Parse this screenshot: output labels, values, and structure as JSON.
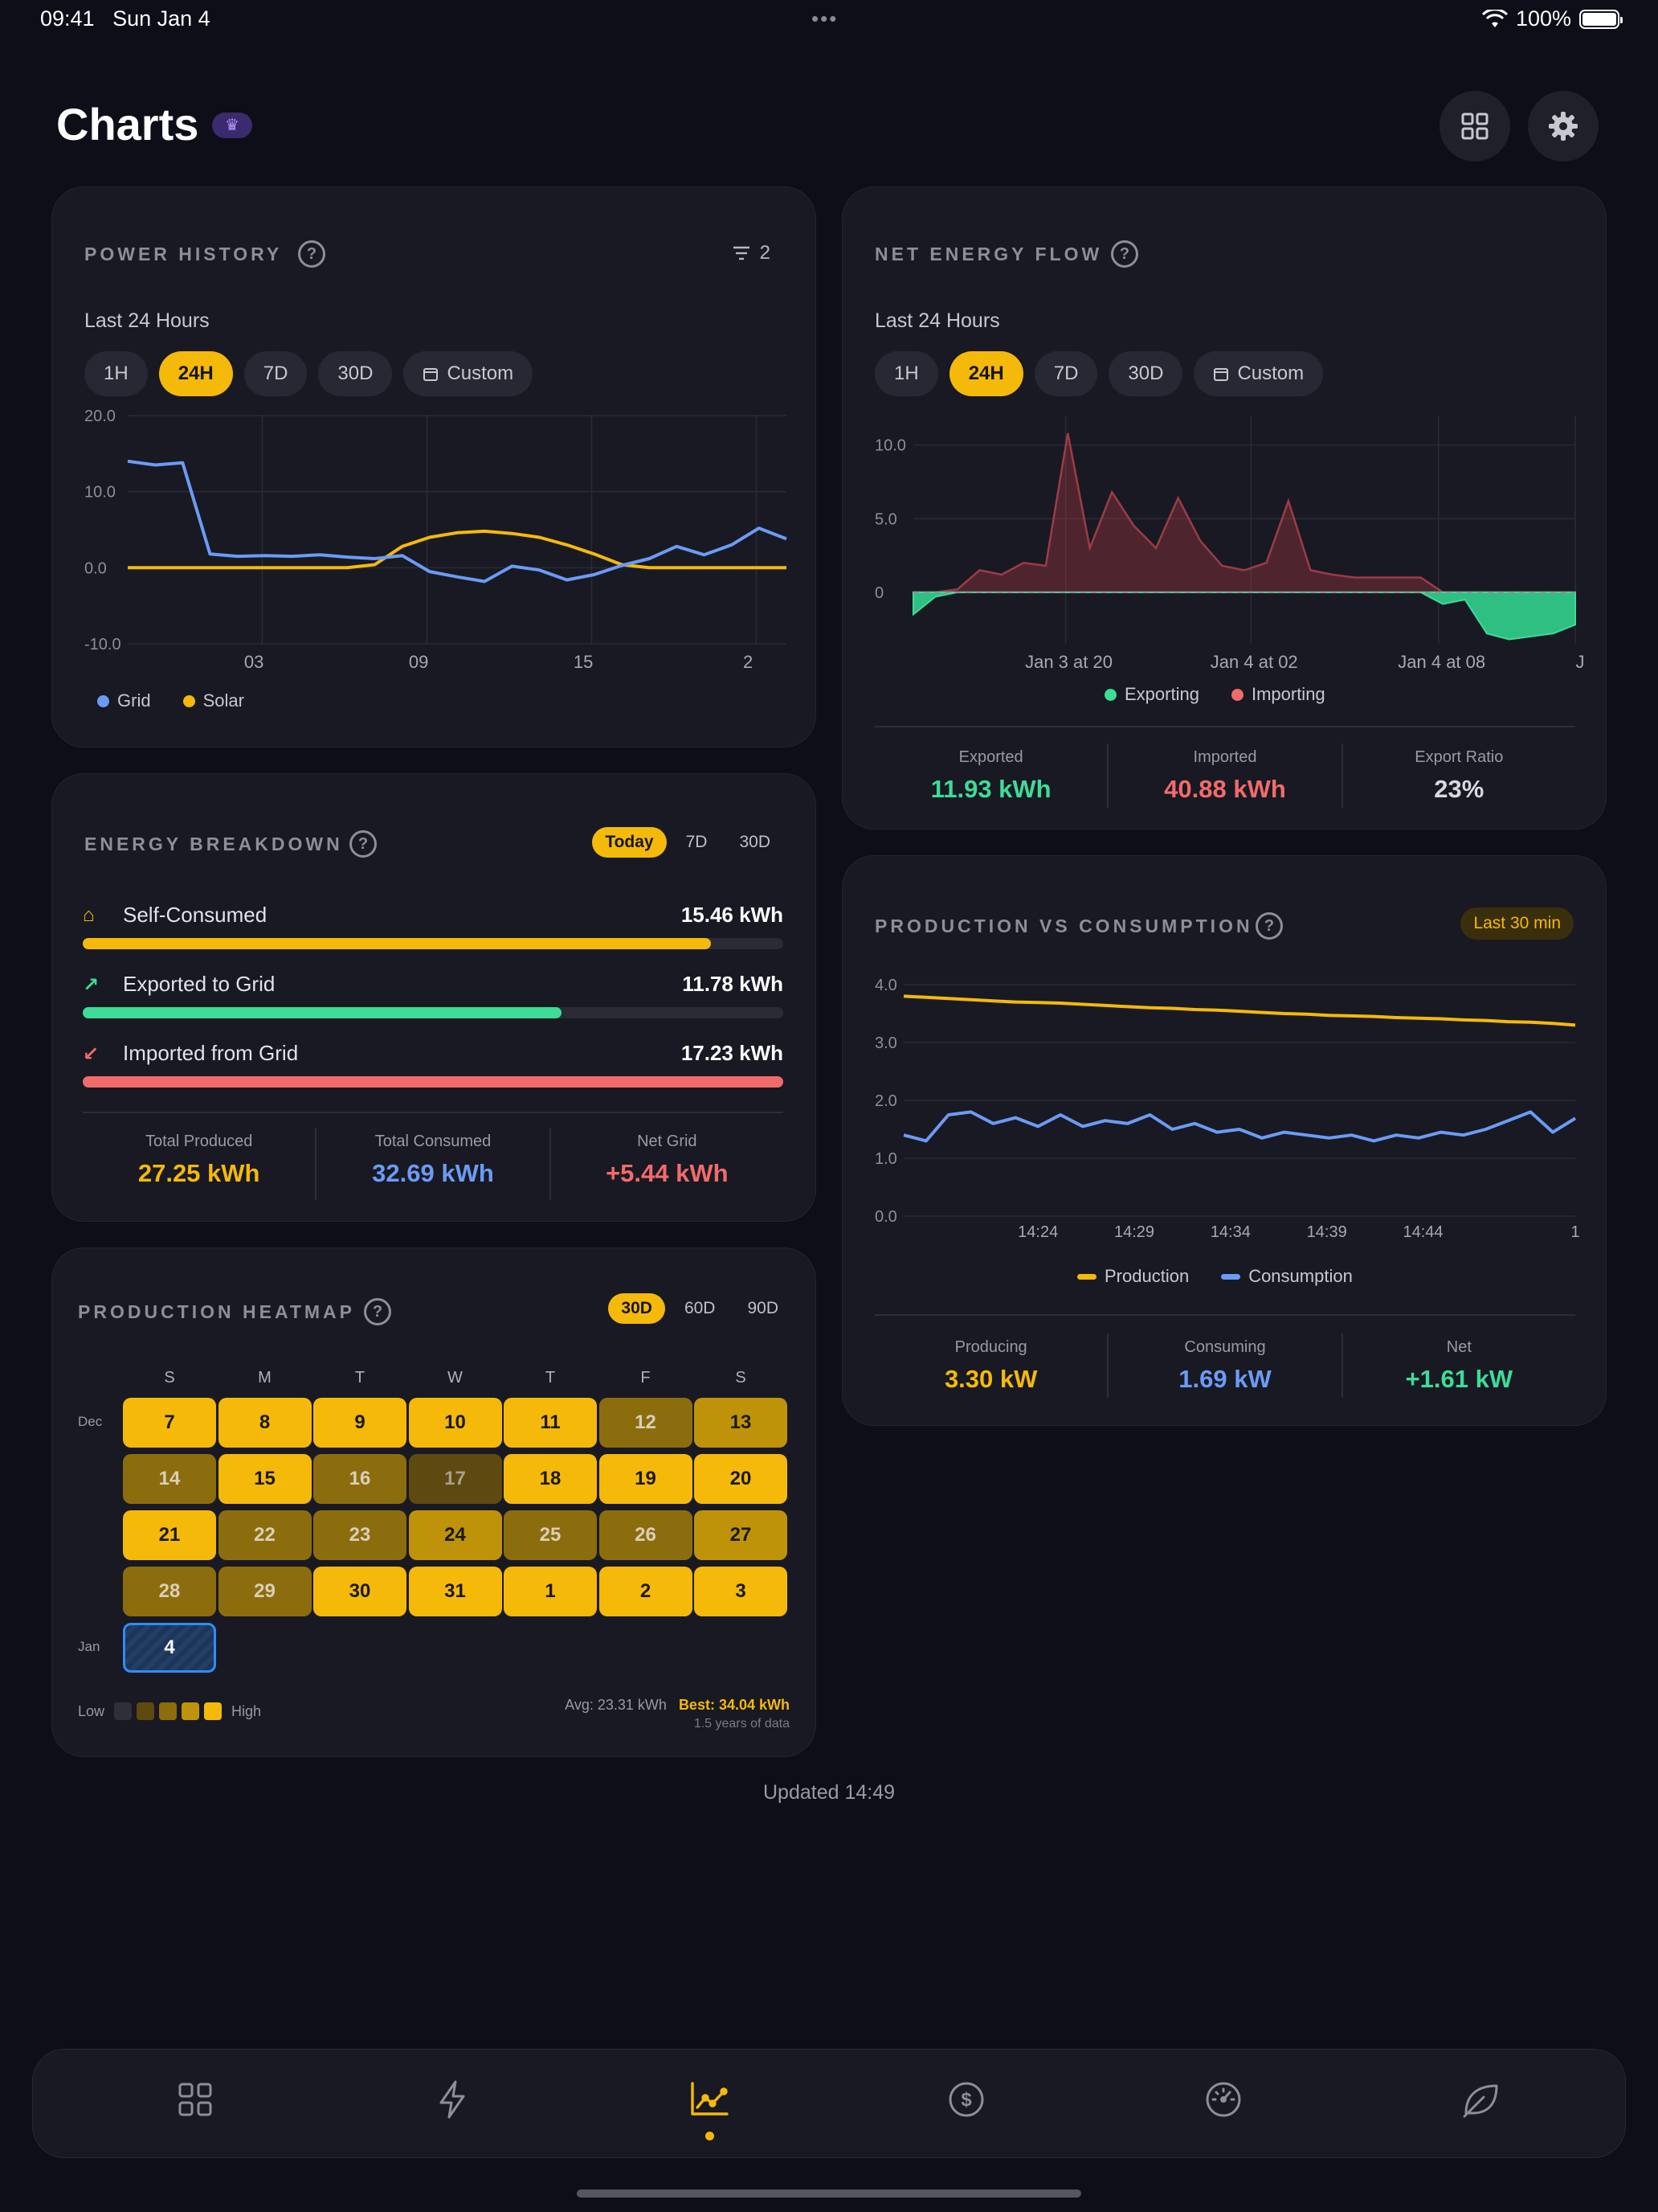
{
  "status": {
    "time": "09:41",
    "date": "Sun Jan 4",
    "battery": "100%"
  },
  "header": {
    "title": "Charts",
    "grid_icon": "grid-icon",
    "settings_icon": "gear-icon",
    "badge_icon": "crown-icon"
  },
  "power_history": {
    "title": "POWER HISTORY",
    "filter_count": "2",
    "subtitle": "Last 24 Hours",
    "ranges": [
      "1H",
      "24H",
      "7D",
      "30D",
      "Custom"
    ],
    "active_range": "24H",
    "legend": [
      "Grid",
      "Solar"
    ],
    "colors": {
      "grid": "#6b9bf5",
      "solar": "#f5b90a"
    }
  },
  "net_energy": {
    "title": "NET ENERGY FLOW",
    "subtitle": "Last 24 Hours",
    "ranges": [
      "1H",
      "24H",
      "7D",
      "30D",
      "Custom"
    ],
    "active_range": "24H",
    "legend": [
      "Exporting",
      "Importing"
    ],
    "stats": [
      {
        "label": "Exported",
        "value": "11.93 kWh",
        "color": "#3ddc97"
      },
      {
        "label": "Imported",
        "value": "40.88 kWh",
        "color": "#f26b6b"
      },
      {
        "label": "Export Ratio",
        "value": "23%",
        "color": "#d8d8de"
      }
    ]
  },
  "energy_breakdown": {
    "title": "ENERGY BREAKDOWN",
    "ranges": [
      "Today",
      "7D",
      "30D"
    ],
    "active_range": "Today",
    "rows": [
      {
        "label": "Self-Consumed",
        "value": "15.46 kWh",
        "fraction": 0.897,
        "color": "#f5b90a",
        "icon": "home-icon"
      },
      {
        "label": "Exported to Grid",
        "value": "11.78 kWh",
        "fraction": 0.683,
        "color": "#3ddc97",
        "icon": "arrow-up-right-icon"
      },
      {
        "label": "Imported from Grid",
        "value": "17.23 kWh",
        "fraction": 1.0,
        "color": "#f26b6b",
        "icon": "arrow-down-left-icon"
      }
    ],
    "stats": [
      {
        "label": "Total Produced",
        "value": "27.25 kWh",
        "color": "#f5b90a"
      },
      {
        "label": "Total Consumed",
        "value": "32.69 kWh",
        "color": "#6b9bf5"
      },
      {
        "label": "Net Grid",
        "value": "+5.44 kWh",
        "color": "#f26b6b"
      }
    ]
  },
  "production_vs_consumption": {
    "title": "PRODUCTION VS CONSUMPTION",
    "badge": "Last 30 min",
    "legend": [
      "Production",
      "Consumption"
    ],
    "stats": [
      {
        "label": "Producing",
        "value": "3.30 kW",
        "color": "#f5b90a"
      },
      {
        "label": "Consuming",
        "value": "1.69 kW",
        "color": "#6b9bf5"
      },
      {
        "label": "Net",
        "value": "+1.61 kW",
        "color": "#3ddc97"
      }
    ]
  },
  "heatmap": {
    "title": "PRODUCTION HEATMAP",
    "ranges": [
      "30D",
      "60D",
      "90D"
    ],
    "active_range": "30D",
    "weekdays": [
      "S",
      "M",
      "T",
      "W",
      "T",
      "F",
      "S"
    ],
    "month_labels": [
      "Dec",
      "Jan"
    ],
    "weeks": [
      [
        {
          "d": "7",
          "l": 4
        },
        {
          "d": "8",
          "l": 4
        },
        {
          "d": "9",
          "l": 4
        },
        {
          "d": "10",
          "l": 4
        },
        {
          "d": "11",
          "l": 4
        },
        {
          "d": "12",
          "l": 2
        },
        {
          "d": "13",
          "l": 3
        }
      ],
      [
        {
          "d": "14",
          "l": 2
        },
        {
          "d": "15",
          "l": 4
        },
        {
          "d": "16",
          "l": 2
        },
        {
          "d": "17",
          "l": 1
        },
        {
          "d": "18",
          "l": 4
        },
        {
          "d": "19",
          "l": 4
        },
        {
          "d": "20",
          "l": 4
        }
      ],
      [
        {
          "d": "21",
          "l": 4
        },
        {
          "d": "22",
          "l": 2
        },
        {
          "d": "23",
          "l": 2
        },
        {
          "d": "24",
          "l": 3
        },
        {
          "d": "25",
          "l": 2
        },
        {
          "d": "26",
          "l": 2
        },
        {
          "d": "27",
          "l": 3
        }
      ],
      [
        {
          "d": "28",
          "l": 2
        },
        {
          "d": "29",
          "l": 2
        },
        {
          "d": "30",
          "l": 4
        },
        {
          "d": "31",
          "l": 4
        },
        {
          "d": "1",
          "l": 4
        },
        {
          "d": "2",
          "l": 4
        },
        {
          "d": "3",
          "l": 4
        }
      ],
      [
        {
          "d": "4",
          "l": 0,
          "today": true
        }
      ]
    ],
    "legend_low": "Low",
    "legend_high": "High",
    "avg": "Avg: 23.31 kWh",
    "best": "Best: 34.04 kWh",
    "history": "1.5 years of data"
  },
  "footer": {
    "updated": "Updated 14:49"
  },
  "tabbar": {
    "tabs": [
      "grid-icon",
      "bolt-icon",
      "chart-icon",
      "dollar-icon",
      "gauge-icon",
      "leaf-icon"
    ],
    "active": 2
  },
  "chart_data": [
    {
      "type": "line",
      "x_ticks": [
        "03",
        "09",
        "15",
        "2"
      ],
      "ylim": [
        -10,
        20
      ],
      "y_ticks": [
        "20.0",
        "10.0",
        "0.0",
        "-10.0"
      ],
      "x": [
        0,
        1,
        2,
        3,
        4,
        5,
        6,
        7,
        8,
        9,
        10,
        11,
        12,
        13,
        14,
        15,
        16,
        17,
        18,
        19,
        20,
        21,
        22,
        23,
        24
      ],
      "series": [
        {
          "name": "Grid",
          "values": [
            14,
            13.5,
            13.8,
            1.8,
            1.5,
            1.6,
            1.5,
            1.7,
            1.4,
            1.2,
            1.6,
            -0.5,
            -1.2,
            -1.8,
            0.2,
            -0.3,
            -1.6,
            -0.9,
            0.3,
            1.2,
            2.8,
            1.7,
            3.0,
            5.2,
            3.8
          ]
        },
        {
          "name": "Solar",
          "values": [
            0,
            0,
            0,
            0,
            0,
            0,
            0,
            0,
            0,
            0.4,
            2.8,
            4.0,
            4.6,
            4.8,
            4.5,
            4.0,
            3.0,
            1.8,
            0.4,
            0,
            0,
            0,
            0,
            0,
            0
          ]
        }
      ]
    },
    {
      "type": "area",
      "x_ticks": [
        "Jan 3 at 20",
        "Jan 4 at 02",
        "Jan 4 at 08",
        "J"
      ],
      "y_ticks": [
        "10.0",
        "5.0",
        "0"
      ],
      "ylim": [
        -3.5,
        12
      ],
      "x": [
        0,
        1,
        2,
        3,
        4,
        5,
        6,
        7,
        8,
        9,
        10,
        11,
        12,
        13,
        14,
        15,
        16,
        17,
        18,
        19,
        20,
        21,
        22,
        23,
        24,
        25,
        26,
        27,
        28,
        29,
        30
      ],
      "values": [
        -1.5,
        -0.3,
        0.2,
        1.5,
        1.2,
        2.0,
        1.8,
        10.8,
        3.0,
        6.8,
        4.5,
        3.0,
        6.4,
        3.5,
        1.8,
        1.5,
        2.0,
        6.2,
        1.5,
        1.2,
        1.0,
        1.0,
        1.0,
        1.0,
        -0.8,
        -0.5,
        -2.8,
        -3.2,
        -3.0,
        -2.8,
        -2.2
      ],
      "series": [
        {
          "name": "Exporting",
          "color": "#3ddc97"
        },
        {
          "name": "Importing",
          "color": "#f26b6b"
        }
      ]
    },
    {
      "type": "line",
      "x_ticks": [
        "14:24",
        "14:29",
        "14:34",
        "14:39",
        "14:44",
        "1"
      ],
      "y_ticks": [
        "4.0",
        "3.0",
        "2.0",
        "1.0",
        "0.0"
      ],
      "ylim": [
        0,
        4
      ],
      "x": [
        0,
        1,
        2,
        3,
        4,
        5,
        6,
        7,
        8,
        9,
        10,
        11,
        12,
        13,
        14,
        15,
        16,
        17,
        18,
        19,
        20,
        21,
        22,
        23,
        24,
        25,
        26,
        27,
        28,
        29,
        30
      ],
      "series": [
        {
          "name": "Production",
          "values": [
            3.8,
            3.78,
            3.76,
            3.74,
            3.72,
            3.7,
            3.69,
            3.68,
            3.66,
            3.64,
            3.62,
            3.6,
            3.59,
            3.57,
            3.56,
            3.54,
            3.52,
            3.5,
            3.49,
            3.47,
            3.46,
            3.45,
            3.43,
            3.42,
            3.41,
            3.39,
            3.38,
            3.36,
            3.35,
            3.33,
            3.3
          ]
        },
        {
          "name": "Consumption",
          "values": [
            1.4,
            1.3,
            1.75,
            1.8,
            1.6,
            1.7,
            1.55,
            1.75,
            1.55,
            1.65,
            1.6,
            1.75,
            1.5,
            1.6,
            1.45,
            1.5,
            1.35,
            1.45,
            1.4,
            1.35,
            1.4,
            1.3,
            1.4,
            1.35,
            1.45,
            1.4,
            1.5,
            1.65,
            1.8,
            1.45,
            1.69
          ]
        }
      ]
    }
  ]
}
